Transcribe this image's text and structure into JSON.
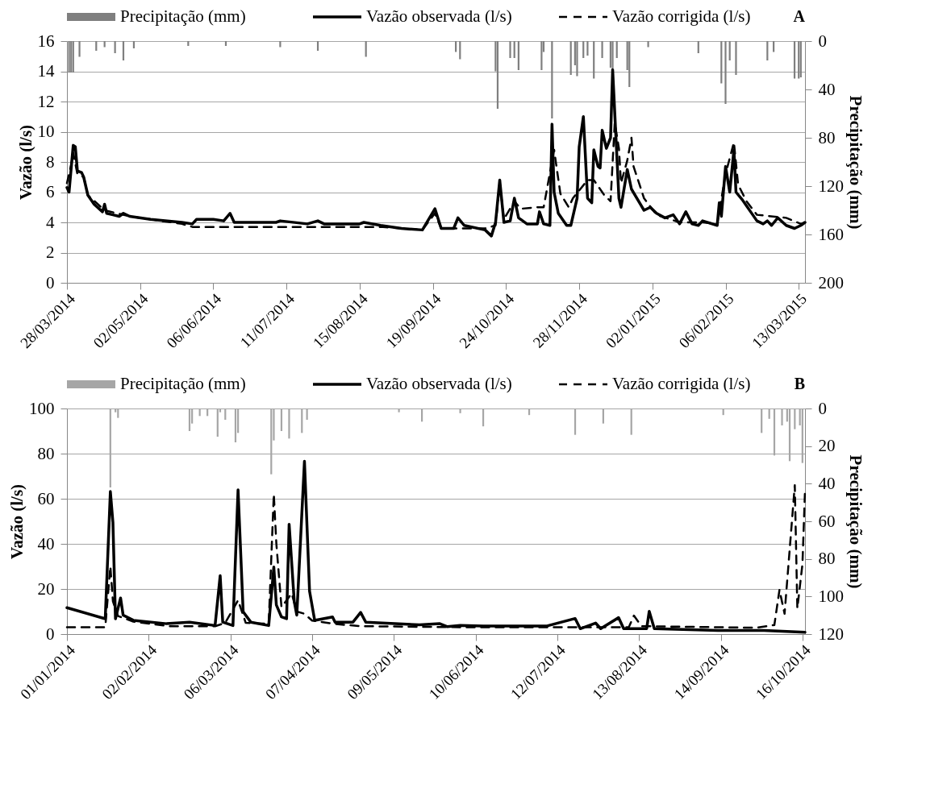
{
  "chart_data": [
    {
      "type": "line",
      "title": "A",
      "ylabel": "Vazão (l/s)",
      "y2label": "Precipitação (mm)",
      "legend": "top",
      "grid": "y",
      "xlim": [
        "2014-03-28",
        "2015-03-16"
      ],
      "xticks": [
        {
          "value": "2014-03-28",
          "label": "28/03/2014"
        },
        {
          "value": "2014-05-02",
          "label": "02/05/2014"
        },
        {
          "value": "2014-06-06",
          "label": "06/06/2014"
        },
        {
          "value": "2014-07-11",
          "label": "11/07/2014"
        },
        {
          "value": "2014-08-15",
          "label": "15/08/2014"
        },
        {
          "value": "2014-09-19",
          "label": "19/09/2014"
        },
        {
          "value": "2014-10-24",
          "label": "24/10/2014"
        },
        {
          "value": "2014-11-28",
          "label": "28/11/2014"
        },
        {
          "value": "2015-01-02",
          "label": "02/01/2015"
        },
        {
          "value": "2015-02-06",
          "label": "06/02/2015"
        },
        {
          "value": "2015-03-13",
          "label": "13/03/2015"
        }
      ],
      "ylim": [
        0,
        16
      ],
      "yticks": [
        0,
        2,
        4,
        6,
        8,
        10,
        12,
        14,
        16
      ],
      "y2lim": [
        200,
        0
      ],
      "y2ticks": [
        0,
        40,
        80,
        120,
        160,
        200
      ],
      "series": [
        {
          "name": "Precipitação (mm)",
          "type": "bar",
          "axis": "y2",
          "color": "#7f7f7f",
          "x": [
            "2014-03-29",
            "2014-03-30",
            "2014-03-31",
            "2014-04-03",
            "2014-04-11",
            "2014-04-15",
            "2014-04-20",
            "2014-04-24",
            "2014-04-29",
            "2014-05-25",
            "2014-06-12",
            "2014-07-08",
            "2014-07-26",
            "2014-08-18",
            "2014-09-30",
            "2014-10-02",
            "2014-10-19",
            "2014-10-20",
            "2014-10-26",
            "2014-10-28",
            "2014-10-30",
            "2014-11-10",
            "2014-11-11",
            "2014-11-15",
            "2014-11-24",
            "2014-11-26",
            "2014-11-27",
            "2014-11-30",
            "2014-12-02",
            "2014-12-05",
            "2014-12-09",
            "2014-12-13",
            "2014-12-14",
            "2014-12-16",
            "2014-12-21",
            "2014-12-22",
            "2014-12-31",
            "2015-01-24",
            "2015-02-04",
            "2015-02-06",
            "2015-02-08",
            "2015-02-11",
            "2015-02-26",
            "2015-03-01",
            "2015-03-11",
            "2015-03-13",
            "2015-03-14"
          ],
          "values": [
            26,
            26,
            26,
            13,
            8,
            5,
            10,
            16,
            6,
            4,
            4,
            5,
            8,
            13,
            9,
            15,
            25,
            56,
            14,
            14,
            24,
            24,
            9,
            64,
            28,
            20,
            29,
            14,
            12,
            31,
            14,
            22,
            25,
            14,
            24,
            38,
            5,
            10,
            35,
            52,
            16,
            28,
            16,
            9,
            31,
            31,
            30
          ]
        },
        {
          "name": "Vazão observada (l/s)",
          "color": "#000000",
          "line_style": "solid",
          "x": [
            "2014-03-28",
            "2014-03-29",
            "2014-03-31",
            "2014-04-01",
            "2014-04-02",
            "2014-04-04",
            "2014-04-05",
            "2014-04-07",
            "2014-04-10",
            "2014-04-14",
            "2014-04-15",
            "2014-04-16",
            "2014-04-19",
            "2014-04-22",
            "2014-04-24",
            "2014-04-27",
            "2014-05-07",
            "2014-05-22",
            "2014-05-27",
            "2014-05-29",
            "2014-06-06",
            "2014-06-11",
            "2014-06-14",
            "2014-06-16",
            "2014-07-06",
            "2014-07-08",
            "2014-07-21",
            "2014-07-26",
            "2014-07-29",
            "2014-08-15",
            "2014-08-17",
            "2014-08-25",
            "2014-09-04",
            "2014-09-14",
            "2014-09-20",
            "2014-09-23",
            "2014-09-29",
            "2014-10-01",
            "2014-10-04",
            "2014-10-14",
            "2014-10-17",
            "2014-10-19",
            "2014-10-21",
            "2014-10-23",
            "2014-10-26",
            "2014-10-28",
            "2014-10-30",
            "2014-11-03",
            "2014-11-08",
            "2014-11-09",
            "2014-11-11",
            "2014-11-14",
            "2014-11-15",
            "2014-11-16",
            "2014-11-18",
            "2014-11-22",
            "2014-11-24",
            "2014-11-27",
            "2014-11-28",
            "2014-11-30",
            "2014-12-02",
            "2014-12-04",
            "2014-12-05",
            "2014-12-07",
            "2014-12-08",
            "2014-12-09",
            "2014-12-11",
            "2014-12-13",
            "2014-12-14",
            "2014-12-17",
            "2014-12-18",
            "2014-12-21",
            "2014-12-23",
            "2014-12-29",
            "2015-01-01",
            "2015-01-04",
            "2015-01-08",
            "2015-01-12",
            "2015-01-15",
            "2015-01-18",
            "2015-01-21",
            "2015-01-24",
            "2015-01-26",
            "2015-02-02",
            "2015-02-03",
            "2015-02-04",
            "2015-02-06",
            "2015-02-08",
            "2015-02-10",
            "2015-02-11",
            "2015-02-14",
            "2015-02-18",
            "2015-02-21",
            "2015-02-24",
            "2015-02-26",
            "2015-02-28",
            "2015-03-03",
            "2015-03-07",
            "2015-03-11",
            "2015-03-14",
            "2015-03-16"
          ],
          "values": [
            6.3,
            6.0,
            9.1,
            9.0,
            7.4,
            7.3,
            7.0,
            5.8,
            5.2,
            4.7,
            5.2,
            4.6,
            4.5,
            4.4,
            4.6,
            4.4,
            4.2,
            4.0,
            3.9,
            4.2,
            4.2,
            4.1,
            4.6,
            4.0,
            4.0,
            4.1,
            3.9,
            4.1,
            3.9,
            3.9,
            4.0,
            3.8,
            3.6,
            3.5,
            4.9,
            3.6,
            3.6,
            4.3,
            3.8,
            3.5,
            3.1,
            4.0,
            6.8,
            4.0,
            4.1,
            5.6,
            4.3,
            3.9,
            3.9,
            4.7,
            3.9,
            3.8,
            10.5,
            6.0,
            4.6,
            3.8,
            3.8,
            5.6,
            9.0,
            11.0,
            5.6,
            5.3,
            8.8,
            7.7,
            7.6,
            10.1,
            8.9,
            9.6,
            14.1,
            5.6,
            5.0,
            7.5,
            6.2,
            4.8,
            5.0,
            4.6,
            4.3,
            4.5,
            3.9,
            4.7,
            3.9,
            3.8,
            4.1,
            3.8,
            5.3,
            4.4,
            7.7,
            6.0,
            8.8,
            6.0,
            5.5,
            4.7,
            4.1,
            3.9,
            4.1,
            3.8,
            4.3,
            3.8,
            3.6,
            3.8,
            4.0
          ]
        },
        {
          "name": "Vazão corrigida (l/s)",
          "color": "#000000",
          "line_style": "dashed",
          "x": [
            "2014-03-28",
            "2014-03-30",
            "2014-03-31",
            "2014-04-02",
            "2014-04-05",
            "2014-04-07",
            "2014-04-15",
            "2014-04-27",
            "2014-05-22",
            "2014-05-27",
            "2014-07-06",
            "2014-08-25",
            "2014-09-14",
            "2014-09-20",
            "2014-09-23",
            "2014-10-14",
            "2014-10-19",
            "2014-10-21",
            "2014-10-23",
            "2014-10-28",
            "2014-10-31",
            "2014-11-08",
            "2014-11-11",
            "2014-11-16",
            "2014-11-19",
            "2014-11-23",
            "2014-11-25",
            "2014-12-02",
            "2014-12-05",
            "2014-12-10",
            "2014-12-13",
            "2014-12-15",
            "2014-12-17",
            "2014-12-18",
            "2014-12-21",
            "2014-12-23",
            "2014-12-24",
            "2014-12-29",
            "2015-01-04",
            "2015-01-15",
            "2015-01-26",
            "2015-02-02",
            "2015-02-06",
            "2015-02-10",
            "2015-02-12",
            "2015-02-16",
            "2015-02-21",
            "2015-03-07",
            "2015-03-14",
            "2015-03-16"
          ],
          "values": [
            6.6,
            7.8,
            8.6,
            7.2,
            7.0,
            5.8,
            4.8,
            4.4,
            3.9,
            3.7,
            3.7,
            3.7,
            3.5,
            4.6,
            3.6,
            3.6,
            3.8,
            6.6,
            4.2,
            5.4,
            4.9,
            5.0,
            5.0,
            8.8,
            5.9,
            5.0,
            5.6,
            6.8,
            6.8,
            5.8,
            5.4,
            10.6,
            8.9,
            6.6,
            8.1,
            9.6,
            7.7,
            5.6,
            4.5,
            4.0,
            4.0,
            3.9,
            7.2,
            9.3,
            6.5,
            5.4,
            4.5,
            4.3,
            3.9,
            4.0
          ]
        }
      ]
    },
    {
      "type": "line",
      "title": "B",
      "ylabel": "Vazão (l/s)",
      "y2label": "Precipitação (mm)",
      "legend": "top",
      "grid": "y",
      "xlim": [
        "2014-01-01",
        "2014-10-17"
      ],
      "xticks": [
        {
          "value": "2014-01-01",
          "label": "01/01/2014"
        },
        {
          "value": "2014-02-02",
          "label": "02/02/2014"
        },
        {
          "value": "2014-03-06",
          "label": "06/03/2014"
        },
        {
          "value": "2014-04-07",
          "label": "07/04/2014"
        },
        {
          "value": "2014-05-09",
          "label": "09/05/2014"
        },
        {
          "value": "2014-06-10",
          "label": "10/06/2014"
        },
        {
          "value": "2014-07-12",
          "label": "12/07/2014"
        },
        {
          "value": "2014-08-13",
          "label": "13/08/2014"
        },
        {
          "value": "2014-09-14",
          "label": "14/09/2014"
        },
        {
          "value": "2014-10-16",
          "label": "16/10/2014"
        }
      ],
      "ylim": [
        0,
        100
      ],
      "yticks": [
        0,
        20,
        40,
        60,
        80,
        100
      ],
      "y2lim": [
        120,
        0
      ],
      "y2ticks": [
        0,
        20,
        40,
        60,
        80,
        100,
        120
      ],
      "series": [
        {
          "name": "Precipitação (mm)",
          "type": "bar",
          "axis": "y2",
          "color": "#a6a6a6",
          "x": [
            "2014-01-18",
            "2014-01-20",
            "2014-01-21",
            "2014-02-18",
            "2014-02-19",
            "2014-02-22",
            "2014-02-25",
            "2014-03-01",
            "2014-03-02",
            "2014-03-04",
            "2014-03-08",
            "2014-03-09",
            "2014-03-22",
            "2014-03-23",
            "2014-03-26",
            "2014-03-29",
            "2014-04-03",
            "2014-04-05",
            "2014-05-11",
            "2014-05-20",
            "2014-06-04",
            "2014-06-13",
            "2014-07-01",
            "2014-07-19",
            "2014-07-30",
            "2014-08-10",
            "2014-09-15",
            "2014-09-30",
            "2014-10-03",
            "2014-10-05",
            "2014-10-08",
            "2014-10-10",
            "2014-10-11",
            "2014-10-13",
            "2014-10-15",
            "2014-10-16"
          ],
          "values": [
            42,
            2,
            5,
            12,
            8,
            4,
            4,
            15,
            2,
            6,
            18,
            13,
            35,
            17,
            12,
            16,
            13,
            6,
            2,
            7,
            2.5,
            9.5,
            3.5,
            14,
            8,
            14,
            3.5,
            13,
            5.5,
            25,
            9,
            7,
            28,
            11,
            9,
            29
          ]
        },
        {
          "name": "Vazão observada (l/s)",
          "color": "#000000",
          "line_style": "solid",
          "x": [
            "2014-01-01",
            "2014-01-16",
            "2014-01-18",
            "2014-01-19",
            "2014-01-20",
            "2014-01-22",
            "2014-01-23",
            "2014-01-27",
            "2014-02-09",
            "2014-02-18",
            "2014-02-28",
            "2014-03-02",
            "2014-03-03",
            "2014-03-07",
            "2014-03-09",
            "2014-03-11",
            "2014-03-14",
            "2014-03-21",
            "2014-03-23",
            "2014-03-24",
            "2014-03-26",
            "2014-03-28",
            "2014-03-29",
            "2014-03-31",
            "2014-04-01",
            "2014-04-04",
            "2014-04-06",
            "2014-04-08",
            "2014-04-15",
            "2014-04-16",
            "2014-04-23",
            "2014-04-26",
            "2014-04-28",
            "2014-05-19",
            "2014-05-27",
            "2014-05-30",
            "2014-06-04",
            "2014-06-13",
            "2014-07-08",
            "2014-07-19",
            "2014-07-21",
            "2014-07-27",
            "2014-07-29",
            "2014-08-05",
            "2014-08-07",
            "2014-08-16",
            "2014-08-17",
            "2014-08-19",
            "2014-09-13",
            "2014-10-01",
            "2014-10-17"
          ],
          "values": [
            11.7,
            6.8,
            63.2,
            49.5,
            6.8,
            16,
            8.4,
            6.1,
            4.6,
            5.3,
            3.8,
            25.9,
            5.3,
            3.8,
            63.9,
            9.9,
            5.3,
            3.8,
            29.7,
            12.9,
            7.6,
            6.8,
            48.7,
            14.5,
            8.4,
            76.6,
            19,
            6.1,
            7.6,
            5.3,
            5.3,
            9.6,
            5.3,
            4.1,
            4.6,
            3.3,
            3.8,
            3.6,
            3.6,
            6.9,
            2.4,
            4.9,
            2.4,
            7.3,
            2.4,
            2.4,
            10.1,
            2.4,
            1.6,
            1.6,
            0.8
          ]
        },
        {
          "name": "Vazão corrigida (l/s)",
          "color": "#000000",
          "line_style": "dashed",
          "x": [
            "2014-01-01",
            "2014-01-16",
            "2014-01-18",
            "2014-01-19",
            "2014-01-21",
            "2014-01-27",
            "2014-02-10",
            "2014-02-28",
            "2014-03-04",
            "2014-03-09",
            "2014-03-12",
            "2014-03-21",
            "2014-03-23",
            "2014-03-24",
            "2014-03-26",
            "2014-03-30",
            "2014-04-01",
            "2014-04-04",
            "2014-04-07",
            "2014-04-16",
            "2014-04-26",
            "2014-06-10",
            "2014-08-09",
            "2014-08-11",
            "2014-08-14",
            "2014-09-28",
            "2014-10-05",
            "2014-10-07",
            "2014-10-09",
            "2014-10-13",
            "2014-10-14",
            "2014-10-16",
            "2014-10-17"
          ],
          "values": [
            3.0,
            3.0,
            30,
            14.5,
            8,
            5.5,
            3.5,
            3.5,
            5,
            15,
            5,
            4.5,
            62,
            40,
            12,
            18,
            10,
            9,
            6,
            4.5,
            3.5,
            3.0,
            3.0,
            8.2,
            3.5,
            2.8,
            4,
            19.6,
            9,
            66,
            11.4,
            31,
            63.6
          ]
        }
      ]
    }
  ]
}
